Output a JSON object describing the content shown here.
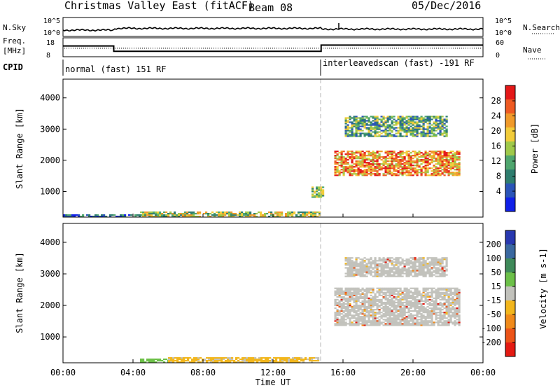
{
  "header": {
    "title": "Christmas Valley East (fitACF)",
    "beam": "Beam 08",
    "date": "05/Dec/2016"
  },
  "strip_labels": {
    "nsky": "N.Sky",
    "nsearch": "N.Search",
    "freq_line1": "Freq.",
    "freq_line2": "[MHz]",
    "nave": "Nave",
    "cpid": "CPID",
    "nsky_ticks": [
      "10^5",
      "10^0"
    ],
    "nsearch_ticks": [
      "10^5",
      "10^0"
    ],
    "freq_ticks": [
      "18",
      "8"
    ],
    "nave_ticks": [
      "60",
      "0"
    ]
  },
  "cpid_segments": [
    {
      "label": "normal (fast) 151 RF",
      "start_hour": 0
    },
    {
      "label": "interleavedscan (fast) -191 RF",
      "start_hour": 14.75
    }
  ],
  "colors": {
    "power": [
      "#1020e8",
      "#2a54b8",
      "#2e7d6e",
      "#4fa66e",
      "#9fc94a",
      "#f2cc3a",
      "#f09a2a",
      "#ee5a22",
      "#e41818"
    ],
    "velocity_pos": [
      "#2838b0",
      "#3a68a0",
      "#3f8a5a",
      "#6cc048"
    ],
    "velocity_neutral": "#c2c2bc",
    "velocity_neg": [
      "#f2b61c",
      "#f08a1a",
      "#ec5418",
      "#e41a12"
    ],
    "mode_line": "#b4b4b4"
  },
  "chart_data": [
    {
      "type": "line",
      "name": "N.Sky / N.Search / Freq. / Nave strips",
      "x_unit": "hour UT",
      "freq_mhz": [
        {
          "from": 0,
          "to": 2.9,
          "value": 14
        },
        {
          "from": 2.9,
          "to": 14.75,
          "value": 10.8
        },
        {
          "from": 14.75,
          "to": 24,
          "value": 14.5
        }
      ],
      "nave_level": 28
    },
    {
      "type": "heatmap",
      "panel": "power",
      "ylabel": "Slant Range [km]",
      "xlabel": "",
      "colorbar_label": "Power [dB]",
      "colorbar_ticks": [
        "28",
        "24",
        "20",
        "16",
        "12",
        "8",
        "4"
      ],
      "ylim": [
        180,
        4600
      ],
      "y_ticks": [
        "4000",
        "3000",
        "2000",
        "1000"
      ],
      "xlim": [
        0,
        24
      ],
      "regions": [
        {
          "x": [
            4.4,
            14.6
          ],
          "y": [
            180,
            320
          ],
          "levels": [
            2,
            6
          ]
        },
        {
          "x": [
            0,
            4.4
          ],
          "y": [
            180,
            260
          ],
          "levels": [
            0,
            3
          ]
        },
        {
          "x": [
            15.5,
            22.6
          ],
          "y": [
            1500,
            2300
          ],
          "levels": [
            4,
            8
          ]
        },
        {
          "x": [
            16.1,
            21.9
          ],
          "y": [
            2750,
            3400
          ],
          "levels": [
            1,
            5
          ]
        },
        {
          "x": [
            14.2,
            14.8
          ],
          "y": [
            800,
            1150
          ],
          "levels": [
            2,
            5
          ]
        }
      ]
    },
    {
      "type": "heatmap",
      "panel": "velocity",
      "ylabel": "Slant Range [km]",
      "xlabel": "Time UT",
      "colorbar_label": "Velocity [m s-1]",
      "colorbar_ticks": [
        "200",
        "100",
        "50",
        "15",
        "-15",
        "-50",
        "-100",
        "-200"
      ],
      "ylim": [
        180,
        4600
      ],
      "y_ticks": [
        "4000",
        "3000",
        "2000",
        "1000"
      ],
      "xlim": [
        0,
        24
      ],
      "x_ticks": [
        "00:00",
        "04:00",
        "08:00",
        "12:00",
        "16:00",
        "20:00",
        "00:00"
      ],
      "regions": [
        {
          "x": [
            4.4,
            6.0
          ],
          "y": [
            180,
            300
          ],
          "class": "positive"
        },
        {
          "x": [
            6.0,
            14.6
          ],
          "y": [
            180,
            320
          ],
          "class": "negative"
        },
        {
          "x": [
            15.5,
            22.6
          ],
          "y": [
            1350,
            2550
          ],
          "class": "neutral"
        },
        {
          "x": [
            16.1,
            21.9
          ],
          "y": [
            2900,
            3500
          ],
          "class": "neutral"
        }
      ]
    }
  ]
}
